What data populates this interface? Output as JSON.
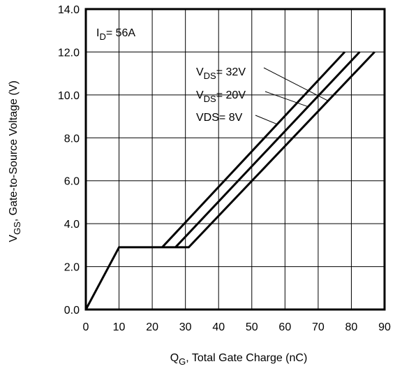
{
  "chart_data": {
    "type": "line",
    "annotation_id": {
      "main": "I",
      "sub": "D",
      "rest": "= 56A"
    },
    "xlabel": {
      "main": "Q",
      "sub": "G",
      "rest": ",  Total Gate Charge (nC)"
    },
    "ylabel": {
      "main": "V",
      "sub": "GS",
      "rest": ", Gate-to-Source Voltage (V)"
    },
    "xlim": [
      0,
      90
    ],
    "ylim": [
      0,
      14
    ],
    "x_ticks": [
      0,
      10,
      20,
      30,
      40,
      50,
      60,
      70,
      80,
      90
    ],
    "y_ticks": [
      0,
      2,
      4,
      6,
      8,
      10,
      12,
      14
    ],
    "y_tick_labels": [
      "0.0",
      "2.0",
      "4.0",
      "6.0",
      "8.0",
      "10.0",
      "12.0",
      "14.0"
    ],
    "grid": true,
    "series": [
      {
        "label_main": "V",
        "label_sub": "DS",
        "label_rest": "= 32V",
        "points": [
          [
            0,
            0
          ],
          [
            10,
            2.9
          ],
          [
            31,
            2.9
          ],
          [
            87,
            12
          ]
        ]
      },
      {
        "label_main": "V",
        "label_sub": "DS",
        "label_rest": "= 20V",
        "points": [
          [
            27,
            2.9
          ],
          [
            82.5,
            12
          ]
        ]
      },
      {
        "label_main": "VDS= 8V",
        "label_sub": "",
        "label_rest": "",
        "points": [
          [
            23,
            2.9
          ],
          [
            78,
            12
          ]
        ]
      }
    ],
    "color": "#000000"
  }
}
